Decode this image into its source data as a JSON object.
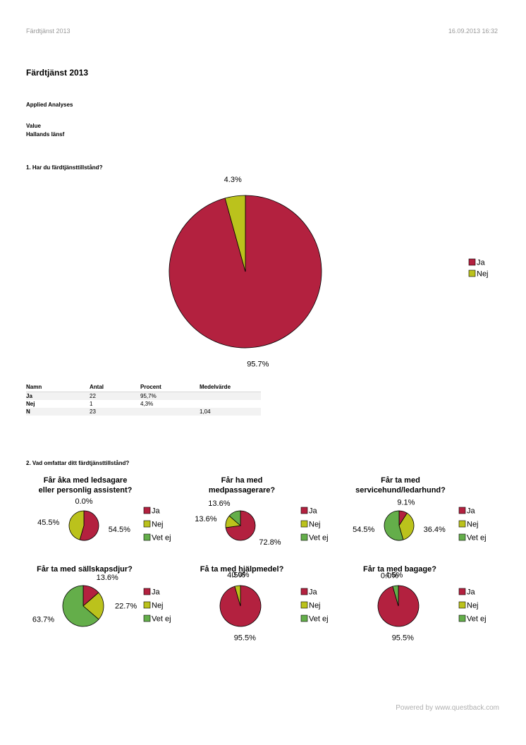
{
  "header": {
    "left": "Färdtjänst 2013",
    "right": "16.09.2013 16:32"
  },
  "report": {
    "title": "Färdtjänst 2013",
    "company": "Applied Analyses",
    "value_label": "Value",
    "region": "Hallands länsf"
  },
  "colors": {
    "ja": "#b3213f",
    "nej": "#bbc21c",
    "vetej": "#64ae4a"
  },
  "q1": {
    "title": "1. Har du färdtjänsttillstånd?",
    "table": {
      "headers": [
        "Namn",
        "Antal",
        "Procent",
        "Medelvärde"
      ],
      "rows": [
        [
          "Ja",
          "22",
          "95,7%",
          ""
        ],
        [
          "Nej",
          "1",
          "4,3%",
          ""
        ],
        [
          "N",
          "23",
          "",
          "1,04"
        ]
      ]
    }
  },
  "q2": {
    "title": "2. Vad omfattar ditt färdtjänsttillstånd?"
  },
  "chart_data": [
    {
      "type": "pie",
      "title": "1. Har du färdtjänsttillstånd?",
      "categories": [
        "Ja",
        "Nej"
      ],
      "values": [
        95.7,
        4.3
      ],
      "labels": [
        "95.7%",
        "4.3%"
      ],
      "legend": [
        "Ja",
        "Nej"
      ]
    },
    {
      "type": "pie",
      "title": "Får åka med ledsagare eller personlig assistent?",
      "title_lines": [
        "Får åka med ledsagare",
        "eller personlig assistent?"
      ],
      "categories": [
        "Ja",
        "Nej",
        "Vet ej"
      ],
      "values": [
        54.5,
        45.5,
        0.0
      ],
      "labels": [
        "54.5%",
        "45.5%",
        "0.0%"
      ],
      "legend": [
        "Ja",
        "Nej",
        "Vet ej"
      ]
    },
    {
      "type": "pie",
      "title": "Får ha med medpassagerare?",
      "title_lines": [
        "Får ha med",
        "medpassagerare?"
      ],
      "categories": [
        "Ja",
        "Nej",
        "Vet ej"
      ],
      "values": [
        72.8,
        13.6,
        13.6
      ],
      "labels": [
        "72.8%",
        "13.6%",
        "13.6%"
      ],
      "legend": [
        "Ja",
        "Nej",
        "Vet ej"
      ]
    },
    {
      "type": "pie",
      "title": "Får ta med servicehund/ledarhund?",
      "title_lines": [
        "Får ta med",
        "servicehund/ledarhund?"
      ],
      "categories": [
        "Ja",
        "Nej",
        "Vet ej"
      ],
      "values": [
        9.1,
        36.4,
        54.5
      ],
      "labels": [
        "9.1%",
        "36.4%",
        "54.5%"
      ],
      "legend": [
        "Ja",
        "Nej",
        "Vet ej"
      ]
    },
    {
      "type": "pie",
      "title": "Får ta med sällskapsdjur?",
      "title_lines": [
        "Får ta med sällskapsdjur?"
      ],
      "categories": [
        "Ja",
        "Nej",
        "Vet ej"
      ],
      "values": [
        13.6,
        22.7,
        63.7
      ],
      "labels": [
        "13.6%",
        "22.7%",
        "63.7%"
      ],
      "legend": [
        "Ja",
        "Nej",
        "Vet ej"
      ]
    },
    {
      "type": "pie",
      "title": "Få ta med hjälpmedel?",
      "title_lines": [
        "Få ta med hjälpmedel?"
      ],
      "categories": [
        "Ja",
        "Nej",
        "Vet ej"
      ],
      "values": [
        95.5,
        4.5,
        0.0
      ],
      "labels": [
        "95.5%",
        "4.5%",
        "0.0%"
      ],
      "legend": [
        "Ja",
        "Nej",
        "Vet ej"
      ]
    },
    {
      "type": "pie",
      "title": "Får ta med bagage?",
      "title_lines": [
        "Får ta med bagage?"
      ],
      "categories": [
        "Ja",
        "Nej",
        "Vet ej"
      ],
      "values": [
        95.5,
        0.0,
        4.5
      ],
      "labels": [
        "95.5%",
        "0.0%",
        "4.5%"
      ],
      "legend": [
        "Ja",
        "Nej",
        "Vet ej"
      ]
    }
  ],
  "footer": {
    "text": "Powered by www.questback.com"
  }
}
